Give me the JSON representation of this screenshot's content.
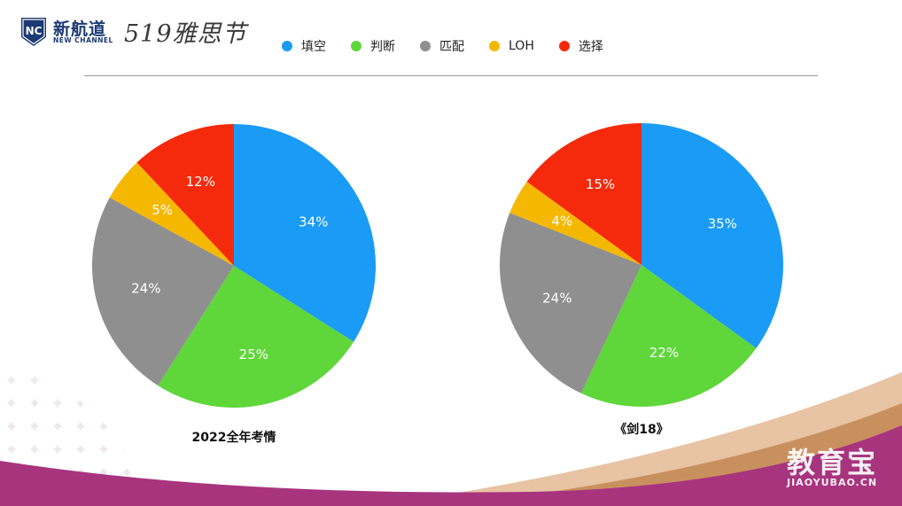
{
  "header": {
    "logo_badge_text": "NC",
    "logo_cn": "新航道",
    "logo_en": "NEW CHANNEL",
    "festival_text": "519雅思节"
  },
  "legend": [
    {
      "label": "填空",
      "color": "#1a9bf5"
    },
    {
      "label": "判断",
      "color": "#5fd63a"
    },
    {
      "label": "匹配",
      "color": "#8f8f8f"
    },
    {
      "label": "LOH",
      "color": "#f5b800"
    },
    {
      "label": "选择",
      "color": "#f52a0c"
    }
  ],
  "chart_data": [
    {
      "type": "pie",
      "title": "2022全年考情",
      "categories": [
        "填空",
        "判断",
        "匹配",
        "LOH",
        "选择"
      ],
      "values": [
        34,
        25,
        24,
        5,
        12
      ],
      "labels": [
        "34%",
        "25%",
        "24%",
        "5%",
        "12%"
      ],
      "colors": [
        "#1a9bf5",
        "#5fd63a",
        "#8f8f8f",
        "#f5b800",
        "#f52a0c"
      ],
      "start": "12 o'clock",
      "direction": "clockwise"
    },
    {
      "type": "pie",
      "title": "《剑18》",
      "categories": [
        "填空",
        "判断",
        "匹配",
        "LOH",
        "选择"
      ],
      "values": [
        35,
        22,
        24,
        4,
        15
      ],
      "labels": [
        "35%",
        "22%",
        "24%",
        "4%",
        "15%"
      ],
      "colors": [
        "#1a9bf5",
        "#5fd63a",
        "#8f8f8f",
        "#f5b800",
        "#f52a0c"
      ],
      "start": "12 o'clock",
      "direction": "clockwise"
    }
  ],
  "watermark": {
    "cn": "教育宝",
    "en": "JIAOYUBAO.CN"
  }
}
